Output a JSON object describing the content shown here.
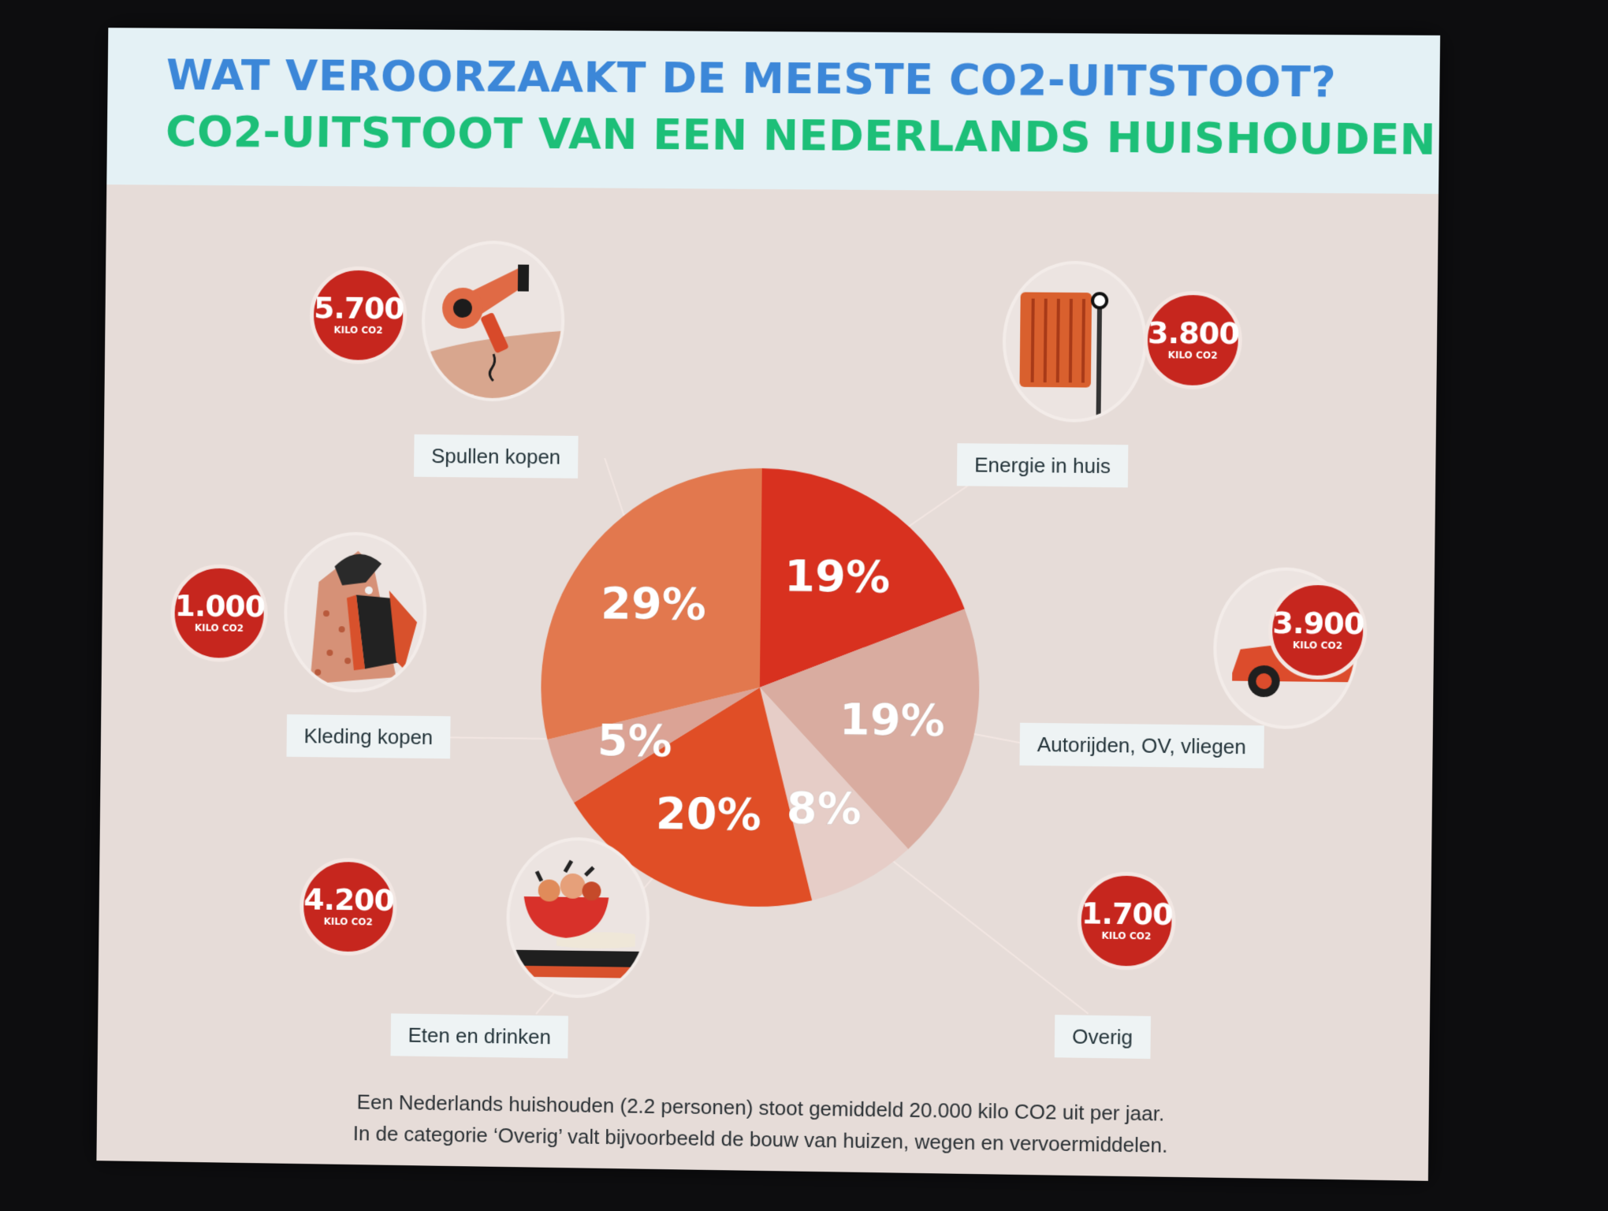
{
  "header": {
    "title": "WAT VEROORZAAKT DE MEESTE CO2-UITSTOOT?",
    "subtitle": "CO2-UITSTOOT VAN EEN NEDERLANDS HUISHOUDEN"
  },
  "colors": {
    "title_blue": "#3c87d8",
    "title_green": "#1dbf78",
    "badge_red": "#c6261e"
  },
  "chart_data": {
    "type": "pie",
    "title": "CO2-UITSTOOT VAN EEN NEDERLANDS HUISHOUDEN",
    "unit": "KILO CO2",
    "slices": [
      {
        "category": "Energie in huis",
        "percent": 19,
        "percent_label": "19%",
        "kilo_label": "3.800",
        "kilo_value": 3800,
        "color": "#d8311f",
        "icon": "radiator-icon"
      },
      {
        "category": "Autorijden, OV, vliegen",
        "percent": 19,
        "percent_label": "19%",
        "kilo_label": "3.900",
        "kilo_value": 3900,
        "color": "#d9aca0",
        "icon": "car-icon"
      },
      {
        "category": "Overig",
        "percent": 8,
        "percent_label": "8%",
        "kilo_label": "1.700",
        "kilo_value": 1700,
        "color": "#e6cdc7",
        "icon": null
      },
      {
        "category": "Eten en drinken",
        "percent": 20,
        "percent_label": "20%",
        "kilo_label": "4.200",
        "kilo_value": 4200,
        "color": "#e04e26",
        "icon": "food-bowl-icon"
      },
      {
        "category": "Kleding kopen",
        "percent": 5,
        "percent_label": "5%",
        "kilo_label": "1.000",
        "kilo_value": 1000,
        "color": "#dba395",
        "icon": "clothing-icon"
      },
      {
        "category": "Spullen kopen",
        "percent": 29,
        "percent_label": "29%",
        "kilo_label": "5.700",
        "kilo_value": 5700,
        "color": "#e2784e",
        "icon": "hair-dryer-icon"
      }
    ],
    "legend": "labels around pie"
  },
  "footer": {
    "line1": "Een Nederlands huishouden (2.2 personen) stoot gemiddeld 20.000 kilo CO2 uit per jaar.",
    "line2": "In de categorie ‘Overig’ valt bijvoorbeeld de bouw van huizen, wegen en vervoermiddelen."
  }
}
